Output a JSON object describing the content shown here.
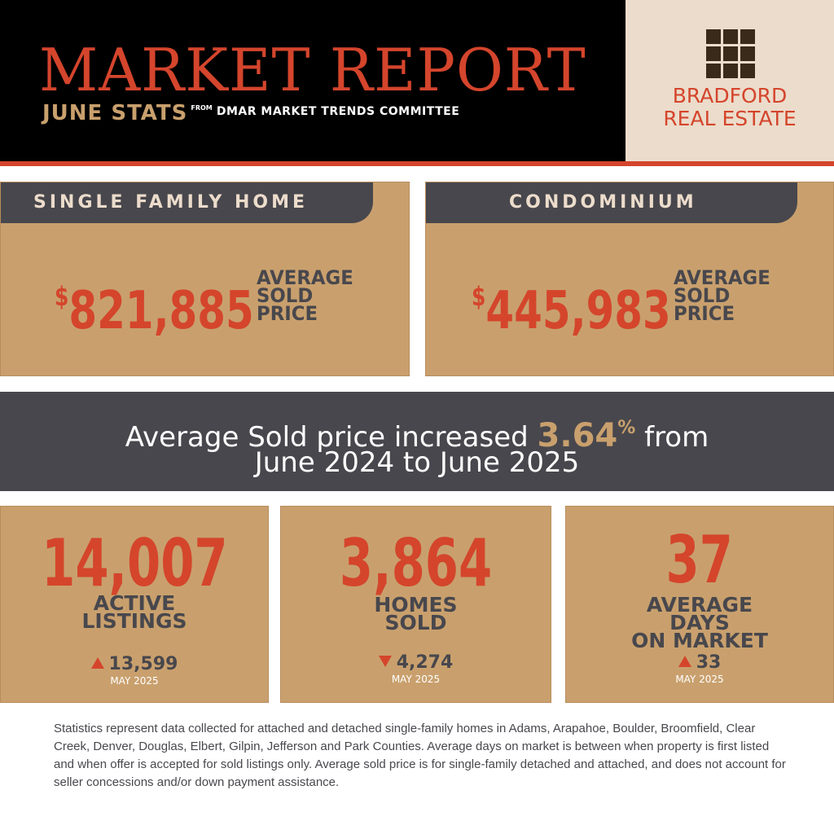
{
  "header": {
    "title": "MARKET REPORT",
    "subtitle": "JUNE STATS",
    "from": "FROM",
    "source": "DMAR MARKET TRENDS COMMITTEE"
  },
  "logo": {
    "icon": "window-grid-icon",
    "line1": "BRADFORD",
    "line2": "REAL ESTATE"
  },
  "single_family": {
    "heading": "SINGLE FAMILY HOME",
    "currency": "$",
    "price": "821,885",
    "label": "AVERAGE\nSOLD\nPRICE"
  },
  "condominium": {
    "heading": "CONDOMINIUM",
    "currency": "$",
    "price": "445,983",
    "label": "AVERAGE\nSOLD\nPRICE"
  },
  "banner": {
    "text_before": "Average Sold price increased ",
    "percent": "3.64",
    "percent_sign": "%",
    "text_after": " from",
    "line2": "June 2024 to June 2025"
  },
  "stats": [
    {
      "value": "14,007",
      "label": "ACTIVE\nLISTINGS",
      "prev_value": "13,599",
      "trend": "up",
      "prev_date": "MAY 2025"
    },
    {
      "value": "3,864",
      "label": "HOMES\nSOLD",
      "prev_value": "4,274",
      "trend": "down",
      "prev_date": "MAY 2025"
    },
    {
      "value": "37",
      "label": "AVERAGE\nDAYS\nON MARKET",
      "prev_value": "33",
      "trend": "up",
      "prev_date": "MAY 2025"
    }
  ],
  "footnote": "Statistics represent data collected for attached and detached single-family homes in Adams, Arapahoe, Boulder, Broomfield, Clear Creek, Denver, Douglas, Elbert, Gilpin, Jefferson and Park Counties. Average days on market is between when property is first listed and when offer is accepted for sold listings only. Average sold price is for single-family detached and attached, and does not account for seller concessions and/or down payment assistance.",
  "colors": {
    "accent_red": "#d4452c",
    "tan": "#c9a06d",
    "charcoal": "#48474d",
    "cream": "#ecdccb"
  }
}
